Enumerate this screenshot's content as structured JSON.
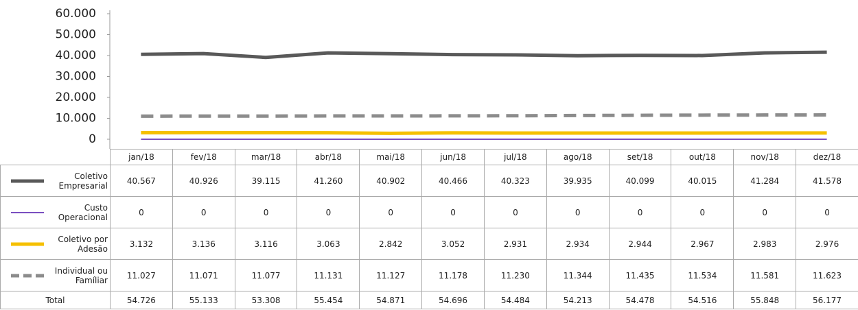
{
  "chart_data": {
    "type": "line",
    "categories": [
      "jan/18",
      "fev/18",
      "mar/18",
      "abr/18",
      "mai/18",
      "jun/18",
      "jul/18",
      "ago/18",
      "set/18",
      "out/18",
      "nov/18",
      "dez/18"
    ],
    "ylim": [
      0,
      60000
    ],
    "yticks": [
      {
        "value": 0,
        "label": "0"
      },
      {
        "value": 10000,
        "label": "10.000"
      },
      {
        "value": 20000,
        "label": "20.000"
      },
      {
        "value": 30000,
        "label": "30.000"
      },
      {
        "value": 40000,
        "label": "40.000"
      },
      {
        "value": 50000,
        "label": "50.000"
      },
      {
        "value": 60000,
        "label": "60.000"
      }
    ],
    "grid": false,
    "series": [
      {
        "name": "Coletivo Empresarial",
        "color": "#595959",
        "width": 5,
        "dash": "none",
        "values": [
          40567,
          40926,
          39115,
          41260,
          40902,
          40466,
          40323,
          39935,
          40099,
          40015,
          41284,
          41578
        ],
        "value_labels": [
          "40.567",
          "40.926",
          "39.115",
          "41.260",
          "40.902",
          "40.466",
          "40.323",
          "39.935",
          "40.099",
          "40.015",
          "41.284",
          "41.578"
        ]
      },
      {
        "name": "Custo Operacional",
        "color": "#7a4fc0",
        "width": 2,
        "dash": "none",
        "values": [
          0,
          0,
          0,
          0,
          0,
          0,
          0,
          0,
          0,
          0,
          0,
          0
        ],
        "value_labels": [
          "0",
          "0",
          "0",
          "0",
          "0",
          "0",
          "0",
          "0",
          "0",
          "0",
          "0",
          "0"
        ]
      },
      {
        "name": "Coletivo por Adesão",
        "color": "#f5c000",
        "width": 5,
        "dash": "none",
        "values": [
          3132,
          3136,
          3116,
          3063,
          2842,
          3052,
          2931,
          2934,
          2944,
          2967,
          2983,
          2976
        ],
        "value_labels": [
          "3.132",
          "3.136",
          "3.116",
          "3.063",
          "2.842",
          "3.052",
          "2.931",
          "2.934",
          "2.944",
          "2.967",
          "2.983",
          "2.976"
        ]
      },
      {
        "name": "Individual ou Famíliar",
        "color": "#8c8c8c",
        "width": 5,
        "dash": "18 10",
        "values": [
          11027,
          11071,
          11077,
          11131,
          11127,
          11178,
          11230,
          11344,
          11435,
          11534,
          11581,
          11623
        ],
        "value_labels": [
          "11.027",
          "11.071",
          "11.077",
          "11.131",
          "11.127",
          "11.178",
          "11.230",
          "11.344",
          "11.435",
          "11.534",
          "11.581",
          "11.623"
        ]
      }
    ],
    "total": {
      "name": "Total",
      "values": [
        54726,
        55133,
        53308,
        55454,
        54871,
        54696,
        54484,
        54213,
        54478,
        54516,
        55848,
        56177
      ],
      "value_labels": [
        "54.726",
        "55.133",
        "53.308",
        "55.454",
        "54.871",
        "54.696",
        "54.484",
        "54.213",
        "54.478",
        "54.516",
        "55.848",
        "56.177"
      ]
    }
  }
}
